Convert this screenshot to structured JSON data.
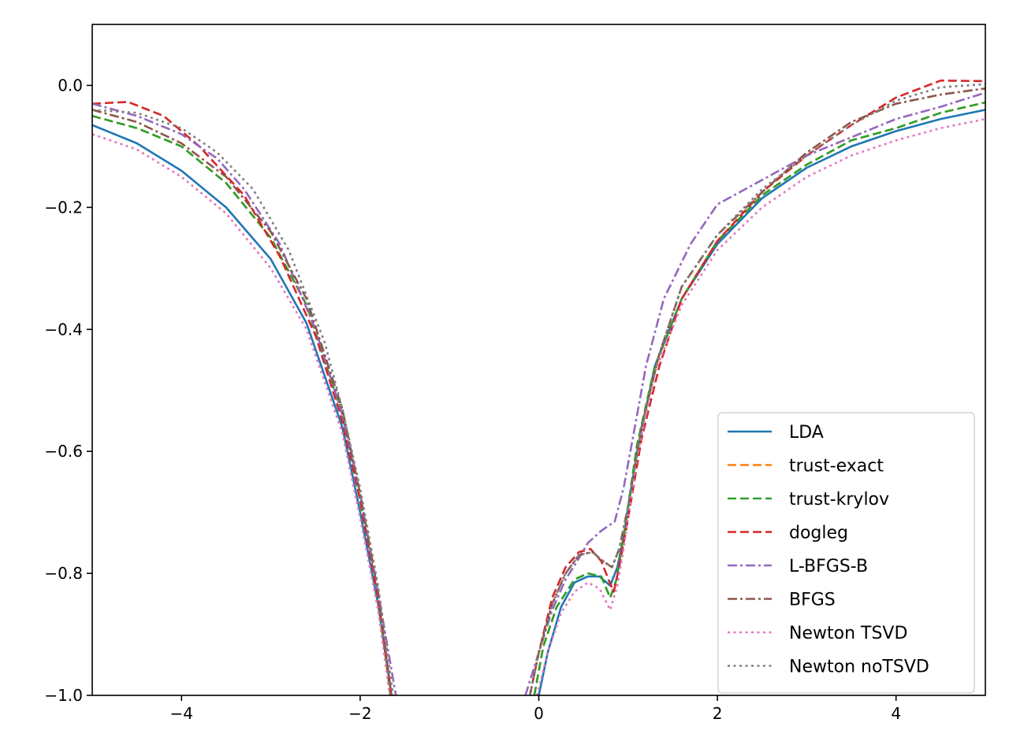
{
  "chart_data": {
    "type": "line",
    "title": "",
    "xlabel": "",
    "ylabel": "",
    "xlim": [
      -5,
      5
    ],
    "ylim": [
      -1.0,
      0.1
    ],
    "xticks": [
      -4,
      -2,
      0,
      2,
      4
    ],
    "xtick_labels": [
      "−4",
      "−2",
      "0",
      "2",
      "4"
    ],
    "yticks": [
      0.0,
      -0.2,
      -0.4,
      -0.6,
      -0.8,
      -1.0
    ],
    "ytick_labels": [
      "0.0",
      "−0.2",
      "−0.4",
      "−0.6",
      "−0.8",
      "−1.0"
    ],
    "grid": false,
    "legend_position": "lower-right",
    "series": [
      {
        "name": "LDA",
        "color": "#1f77b4",
        "dash": "solid",
        "segments": [
          [
            [
              -5,
              -0.065
            ],
            [
              -4.5,
              -0.095
            ],
            [
              -4,
              -0.14
            ],
            [
              -3.5,
              -0.2
            ],
            [
              -3,
              -0.285
            ],
            [
              -2.6,
              -0.39
            ],
            [
              -2.2,
              -0.56
            ],
            [
              -2,
              -0.7
            ],
            [
              -1.8,
              -0.85
            ],
            [
              -1.65,
              -1.0
            ]
          ],
          [
            [
              0,
              -1.0
            ],
            [
              0.1,
              -0.93
            ],
            [
              0.25,
              -0.855
            ],
            [
              0.4,
              -0.815
            ],
            [
              0.55,
              -0.805
            ],
            [
              0.68,
              -0.805
            ],
            [
              0.8,
              -0.82
            ],
            [
              0.88,
              -0.79
            ],
            [
              0.95,
              -0.74
            ],
            [
              1.1,
              -0.6
            ],
            [
              1.3,
              -0.46
            ],
            [
              1.6,
              -0.35
            ],
            [
              2,
              -0.26
            ],
            [
              2.5,
              -0.185
            ],
            [
              3,
              -0.135
            ],
            [
              3.5,
              -0.1
            ],
            [
              4,
              -0.075
            ],
            [
              4.5,
              -0.055
            ],
            [
              5,
              -0.04
            ]
          ]
        ]
      },
      {
        "name": "trust-exact",
        "color": "#ff7f0e",
        "dash": "dashed",
        "segments": [
          [
            [
              -5,
              -0.05
            ],
            [
              -4.5,
              -0.07
            ],
            [
              -4,
              -0.1
            ],
            [
              -3.5,
              -0.16
            ],
            [
              -3,
              -0.25
            ],
            [
              -2.6,
              -0.36
            ],
            [
              -2.2,
              -0.54
            ],
            [
              -2,
              -0.68
            ],
            [
              -1.8,
              -0.84
            ],
            [
              -1.66,
              -1.0
            ]
          ],
          [
            [
              -0.05,
              -1.0
            ],
            [
              0.05,
              -0.92
            ],
            [
              0.2,
              -0.855
            ],
            [
              0.4,
              -0.81
            ],
            [
              0.55,
              -0.8
            ],
            [
              0.7,
              -0.805
            ],
            [
              0.8,
              -0.84
            ],
            [
              0.87,
              -0.81
            ],
            [
              0.95,
              -0.74
            ],
            [
              1.1,
              -0.59
            ],
            [
              1.3,
              -0.46
            ],
            [
              1.6,
              -0.35
            ],
            [
              2,
              -0.255
            ],
            [
              2.5,
              -0.18
            ],
            [
              3,
              -0.13
            ],
            [
              3.5,
              -0.09
            ],
            [
              4,
              -0.07
            ],
            [
              4.5,
              -0.045
            ],
            [
              5,
              -0.028
            ]
          ]
        ]
      },
      {
        "name": "trust-krylov",
        "color": "#2ca02c",
        "dash": "dashed",
        "segments": [
          [
            [
              -5,
              -0.05
            ],
            [
              -4.5,
              -0.07
            ],
            [
              -4,
              -0.1
            ],
            [
              -3.5,
              -0.16
            ],
            [
              -3,
              -0.25
            ],
            [
              -2.6,
              -0.36
            ],
            [
              -2.2,
              -0.54
            ],
            [
              -2,
              -0.68
            ],
            [
              -1.8,
              -0.84
            ],
            [
              -1.66,
              -1.0
            ]
          ],
          [
            [
              -0.05,
              -1.0
            ],
            [
              0.05,
              -0.92
            ],
            [
              0.2,
              -0.855
            ],
            [
              0.4,
              -0.81
            ],
            [
              0.55,
              -0.8
            ],
            [
              0.7,
              -0.805
            ],
            [
              0.8,
              -0.84
            ],
            [
              0.87,
              -0.81
            ],
            [
              0.95,
              -0.74
            ],
            [
              1.1,
              -0.59
            ],
            [
              1.3,
              -0.46
            ],
            [
              1.6,
              -0.35
            ],
            [
              2,
              -0.255
            ],
            [
              2.5,
              -0.18
            ],
            [
              3,
              -0.13
            ],
            [
              3.5,
              -0.09
            ],
            [
              4,
              -0.07
            ],
            [
              4.5,
              -0.045
            ],
            [
              5,
              -0.028
            ]
          ]
        ]
      },
      {
        "name": "dogleg",
        "color": "#d62728",
        "dash": "dashed",
        "segments": [
          [
            [
              -5,
              -0.03
            ],
            [
              -4.6,
              -0.027
            ],
            [
              -4.2,
              -0.05
            ],
            [
              -3.8,
              -0.1
            ],
            [
              -3.3,
              -0.18
            ],
            [
              -2.9,
              -0.28
            ],
            [
              -2.5,
              -0.41
            ],
            [
              -2.2,
              -0.55
            ],
            [
              -2,
              -0.68
            ],
            [
              -1.8,
              -0.84
            ],
            [
              -1.65,
              -1.0
            ]
          ],
          [
            [
              -0.1,
              -1.0
            ],
            [
              0,
              -0.93
            ],
            [
              0.15,
              -0.84
            ],
            [
              0.3,
              -0.79
            ],
            [
              0.45,
              -0.765
            ],
            [
              0.58,
              -0.76
            ],
            [
              0.7,
              -0.78
            ],
            [
              0.78,
              -0.81
            ],
            [
              0.84,
              -0.83
            ],
            [
              0.9,
              -0.79
            ],
            [
              1,
              -0.71
            ],
            [
              1.15,
              -0.58
            ],
            [
              1.35,
              -0.46
            ],
            [
              1.6,
              -0.35
            ],
            [
              2,
              -0.255
            ],
            [
              2.5,
              -0.175
            ],
            [
              3,
              -0.115
            ],
            [
              3.5,
              -0.065
            ],
            [
              4,
              -0.02
            ],
            [
              4.5,
              0.008
            ],
            [
              5,
              0.007
            ]
          ]
        ]
      },
      {
        "name": "L-BFGS-B",
        "color": "#9467bd",
        "dash": "dashdot",
        "segments": [
          [
            [
              -5,
              -0.03
            ],
            [
              -4.5,
              -0.05
            ],
            [
              -4,
              -0.08
            ],
            [
              -3.6,
              -0.12
            ],
            [
              -3.3,
              -0.17
            ],
            [
              -2.9,
              -0.26
            ],
            [
              -2.5,
              -0.4
            ],
            [
              -2.2,
              -0.54
            ],
            [
              -2,
              -0.67
            ],
            [
              -1.8,
              -0.83
            ],
            [
              -1.6,
              -1.0
            ]
          ],
          [
            [
              -0.15,
              -1.0
            ],
            [
              0,
              -0.93
            ],
            [
              0.15,
              -0.86
            ],
            [
              0.3,
              -0.81
            ],
            [
              0.45,
              -0.775
            ],
            [
              0.55,
              -0.75
            ],
            [
              0.7,
              -0.73
            ],
            [
              0.85,
              -0.715
            ],
            [
              0.95,
              -0.66
            ],
            [
              1.05,
              -0.58
            ],
            [
              1.2,
              -0.46
            ],
            [
              1.4,
              -0.35
            ],
            [
              1.7,
              -0.26
            ],
            [
              2,
              -0.195
            ],
            [
              2.5,
              -0.155
            ],
            [
              3,
              -0.115
            ],
            [
              3.5,
              -0.085
            ],
            [
              4,
              -0.055
            ],
            [
              4.5,
              -0.035
            ],
            [
              5,
              -0.012
            ]
          ]
        ]
      },
      {
        "name": "BFGS",
        "color": "#8c564b",
        "dash": "dashdot",
        "segments": [
          [
            [
              -5,
              -0.04
            ],
            [
              -4.5,
              -0.06
            ],
            [
              -4,
              -0.095
            ],
            [
              -3.5,
              -0.15
            ],
            [
              -3,
              -0.24
            ],
            [
              -2.6,
              -0.35
            ],
            [
              -2.2,
              -0.53
            ],
            [
              -2,
              -0.67
            ],
            [
              -1.8,
              -0.83
            ],
            [
              -1.65,
              -1.0
            ]
          ],
          [
            [
              -0.1,
              -1.0
            ],
            [
              0,
              -0.93
            ],
            [
              0.15,
              -0.85
            ],
            [
              0.3,
              -0.8
            ],
            [
              0.45,
              -0.77
            ],
            [
              0.6,
              -0.765
            ],
            [
              0.72,
              -0.78
            ],
            [
              0.82,
              -0.79
            ],
            [
              0.9,
              -0.76
            ],
            [
              1,
              -0.69
            ],
            [
              1.15,
              -0.56
            ],
            [
              1.35,
              -0.44
            ],
            [
              1.6,
              -0.33
            ],
            [
              2,
              -0.245
            ],
            [
              2.5,
              -0.175
            ],
            [
              3,
              -0.11
            ],
            [
              3.5,
              -0.06
            ],
            [
              4,
              -0.03
            ],
            [
              4.5,
              -0.015
            ],
            [
              5,
              -0.005
            ]
          ]
        ]
      },
      {
        "name": "Newton TSVD",
        "color": "#e377c2",
        "dash": "dotted",
        "segments": [
          [
            [
              -5,
              -0.08
            ],
            [
              -4.5,
              -0.105
            ],
            [
              -4,
              -0.15
            ],
            [
              -3.5,
              -0.21
            ],
            [
              -3,
              -0.3
            ],
            [
              -2.6,
              -0.4
            ],
            [
              -2.2,
              -0.57
            ],
            [
              -2,
              -0.71
            ],
            [
              -1.8,
              -0.86
            ],
            [
              -1.67,
              -1.0
            ]
          ],
          [
            [
              -0.02,
              -1.0
            ],
            [
              0.1,
              -0.93
            ],
            [
              0.25,
              -0.865
            ],
            [
              0.4,
              -0.83
            ],
            [
              0.55,
              -0.815
            ],
            [
              0.68,
              -0.825
            ],
            [
              0.8,
              -0.86
            ],
            [
              0.88,
              -0.82
            ],
            [
              0.95,
              -0.76
            ],
            [
              1.1,
              -0.61
            ],
            [
              1.3,
              -0.47
            ],
            [
              1.6,
              -0.36
            ],
            [
              2,
              -0.27
            ],
            [
              2.5,
              -0.2
            ],
            [
              3,
              -0.15
            ],
            [
              3.5,
              -0.115
            ],
            [
              4,
              -0.09
            ],
            [
              4.5,
              -0.07
            ],
            [
              5,
              -0.055
            ]
          ]
        ]
      },
      {
        "name": "Newton noTSVD",
        "color": "#7f7f7f",
        "dash": "dotted",
        "segments": [
          [
            [
              -5,
              -0.04
            ],
            [
              -4.5,
              -0.045
            ],
            [
              -4,
              -0.07
            ],
            [
              -3.6,
              -0.11
            ],
            [
              -3.2,
              -0.17
            ],
            [
              -2.8,
              -0.27
            ],
            [
              -2.4,
              -0.42
            ],
            [
              -2.2,
              -0.53
            ],
            [
              -2,
              -0.66
            ],
            [
              -1.8,
              -0.82
            ],
            [
              -1.63,
              -1.0
            ]
          ],
          [
            [
              -0.1,
              -1.0
            ],
            [
              0,
              -0.93
            ],
            [
              0.15,
              -0.85
            ],
            [
              0.3,
              -0.8
            ],
            [
              0.45,
              -0.77
            ],
            [
              0.6,
              -0.765
            ],
            [
              0.72,
              -0.78
            ],
            [
              0.82,
              -0.79
            ],
            [
              0.9,
              -0.76
            ],
            [
              1,
              -0.69
            ],
            [
              1.15,
              -0.56
            ],
            [
              1.35,
              -0.44
            ],
            [
              1.6,
              -0.33
            ],
            [
              2,
              -0.245
            ],
            [
              2.5,
              -0.17
            ],
            [
              3,
              -0.115
            ],
            [
              3.5,
              -0.065
            ],
            [
              4,
              -0.025
            ],
            [
              4.5,
              -0.003
            ],
            [
              5,
              0.002
            ]
          ]
        ]
      }
    ]
  }
}
